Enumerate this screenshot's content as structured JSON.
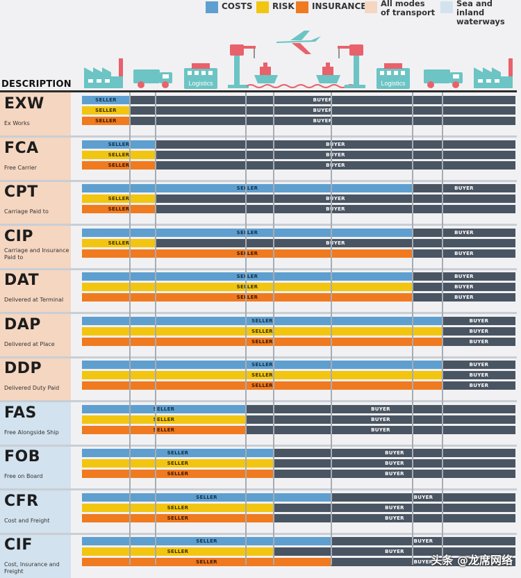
{
  "legend": [
    {
      "label": "COSTS",
      "color": "#5e9fd0"
    },
    {
      "label": "RISK",
      "color": "#f2c511"
    },
    {
      "label": "INSURANCE",
      "color": "#f07a1f"
    },
    {
      "label": "All modes of transport",
      "color": "#f5d6c0"
    },
    {
      "label": "Sea and inland waterways",
      "color": "#d2e2ee"
    }
  ],
  "header": {
    "description": "DESCRIPTION"
  },
  "icons": {
    "logistics_left": "Logistics",
    "logistics_right": "Logistics"
  },
  "labels": {
    "seller": "SELLER",
    "buyer": "BUYER"
  },
  "terms": [
    {
      "code": "EXW",
      "name": "Ex Works",
      "mode": "all",
      "split": {
        "costs": 1,
        "risk": 1,
        "insurance": 1
      }
    },
    {
      "code": "FCA",
      "name": "Free Carrier",
      "mode": "all",
      "split": {
        "costs": 2,
        "risk": 2,
        "insurance": 2
      }
    },
    {
      "code": "CPT",
      "name": "Carriage Paid to",
      "mode": "all",
      "split": {
        "costs": 6,
        "risk": 2,
        "insurance": 2
      }
    },
    {
      "code": "CIP",
      "name": "Carriage and Insurance Paid to",
      "mode": "all",
      "split": {
        "costs": 6,
        "risk": 2,
        "insurance": 6
      }
    },
    {
      "code": "DAT",
      "name": "Delivered at Terminal",
      "mode": "all",
      "split": {
        "costs": 6,
        "risk": 6,
        "insurance": 6
      }
    },
    {
      "code": "DAP",
      "name": "Delivered at Place",
      "mode": "all",
      "split": {
        "costs": 7,
        "risk": 7,
        "insurance": 7
      }
    },
    {
      "code": "DDP",
      "name": "Delivered Duty Paid",
      "mode": "all",
      "split": {
        "costs": 7,
        "risk": 7,
        "insurance": 7
      }
    },
    {
      "code": "FAS",
      "name": "Free Alongside Ship",
      "mode": "sea",
      "split": {
        "costs": 3,
        "risk": 3,
        "insurance": 3
      }
    },
    {
      "code": "FOB",
      "name": "Free on Board",
      "mode": "sea",
      "split": {
        "costs": 4,
        "risk": 4,
        "insurance": 4
      }
    },
    {
      "code": "CFR",
      "name": "Cost and Freight",
      "mode": "sea",
      "split": {
        "costs": 5,
        "risk": 4,
        "insurance": 4
      }
    },
    {
      "code": "CIF",
      "name": "Cost, Insurance and Freight",
      "mode": "sea",
      "split": {
        "costs": 5,
        "risk": 4,
        "insurance": 5
      }
    }
  ],
  "watermark": "头条 @龙席网络"
}
